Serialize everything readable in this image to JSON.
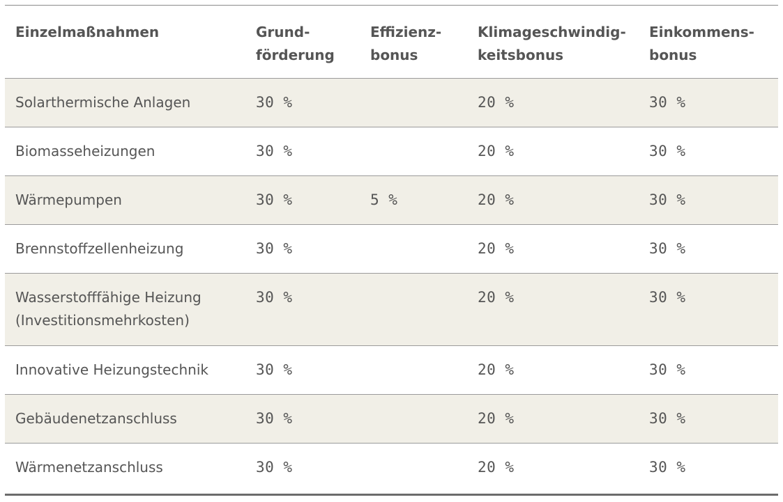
{
  "table": {
    "headers": [
      [
        "Einzelmaßnahmen"
      ],
      [
        "Grund-",
        "förderung"
      ],
      [
        "Effizienz-",
        "bonus"
      ],
      [
        "Klimageschwindig-",
        "keitsbonus"
      ],
      [
        "Einkommens-",
        "bonus"
      ]
    ],
    "rows": [
      {
        "name": [
          "Solarthermische Anlagen"
        ],
        "grund": "30 %",
        "effizienz": "",
        "klima": "20 %",
        "einkommen": "30 %"
      },
      {
        "name": [
          "Biomasseheizungen"
        ],
        "grund": "30 %",
        "effizienz": "",
        "klima": "20 %",
        "einkommen": "30 %"
      },
      {
        "name": [
          "Wärmepumpen"
        ],
        "grund": "30 %",
        "effizienz": "5 %",
        "klima": "20 %",
        "einkommen": "30 %"
      },
      {
        "name": [
          "Brennstoffzellenheizung"
        ],
        "grund": "30 %",
        "effizienz": "",
        "klima": "20 %",
        "einkommen": "30 %"
      },
      {
        "name": [
          "Wasserstofffähige Heizung",
          "(Investitionsmehrkosten)"
        ],
        "grund": "30 %",
        "effizienz": "",
        "klima": "20 %",
        "einkommen": "30 %"
      },
      {
        "name": [
          "Innovative Heizungstechnik"
        ],
        "grund": "30 %",
        "effizienz": "",
        "klima": "20 %",
        "einkommen": "30 %"
      },
      {
        "name": [
          "Gebäudenetzanschluss"
        ],
        "grund": "30 %",
        "effizienz": "",
        "klima": "20 %",
        "einkommen": "30 %"
      },
      {
        "name": [
          "Wärmenetzanschluss"
        ],
        "grund": "30 %",
        "effizienz": "",
        "klima": "20 %",
        "einkommen": "30 %"
      }
    ]
  },
  "colors": {
    "shaded_row": "#f1efe7",
    "text": "#555555",
    "rule": "#9a9a9a"
  }
}
